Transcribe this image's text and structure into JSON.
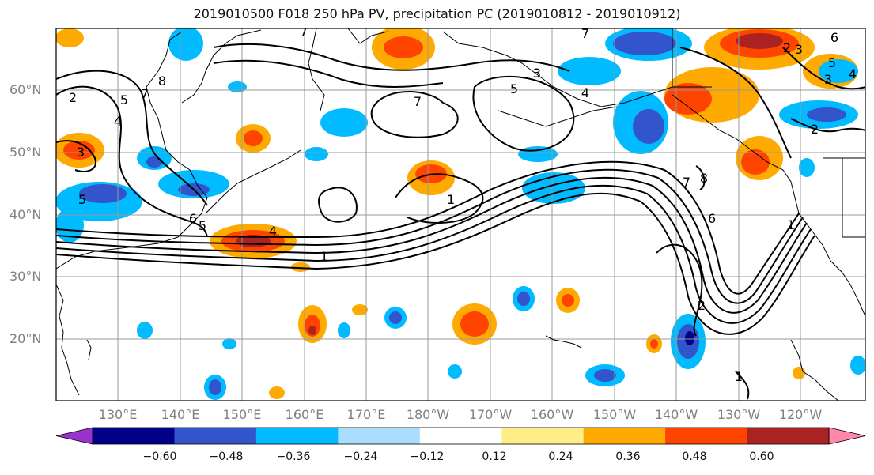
{
  "title": "2019010500 F018 250 hPa PV, precipitation PC (2019010812 - 2019010912)",
  "lat_labels": [
    "60°N",
    "50°N",
    "40°N",
    "30°N",
    "20°N"
  ],
  "lon_labels": [
    "130°E",
    "140°E",
    "150°E",
    "160°E",
    "170°E",
    "180°W",
    "170°W",
    "160°W",
    "150°W",
    "140°W",
    "130°W",
    "120°W"
  ],
  "colorbar": {
    "ticks": [
      "−0.60",
      "−0.48",
      "−0.36",
      "−0.24",
      "−0.12",
      "0.12",
      "0.24",
      "0.36",
      "0.48",
      "0.60"
    ],
    "colors": [
      "#9933cc",
      "#000088",
      "#3355cc",
      "#00bbff",
      "#aaddff",
      "#ffffff",
      "#ffee88",
      "#ffaa00",
      "#ff4400",
      "#aa2222",
      "#ff88aa"
    ]
  },
  "pv_contour_labels": [
    "7",
    "8",
    "7",
    "5",
    "4",
    "2",
    "3",
    "5",
    "6",
    "5",
    "4",
    "1",
    "1",
    "7",
    "5",
    "4",
    "3",
    "7",
    "8",
    "6",
    "2",
    "1",
    "7",
    "2",
    "6",
    "5",
    "4",
    "3",
    "3",
    "2",
    "1"
  ]
}
